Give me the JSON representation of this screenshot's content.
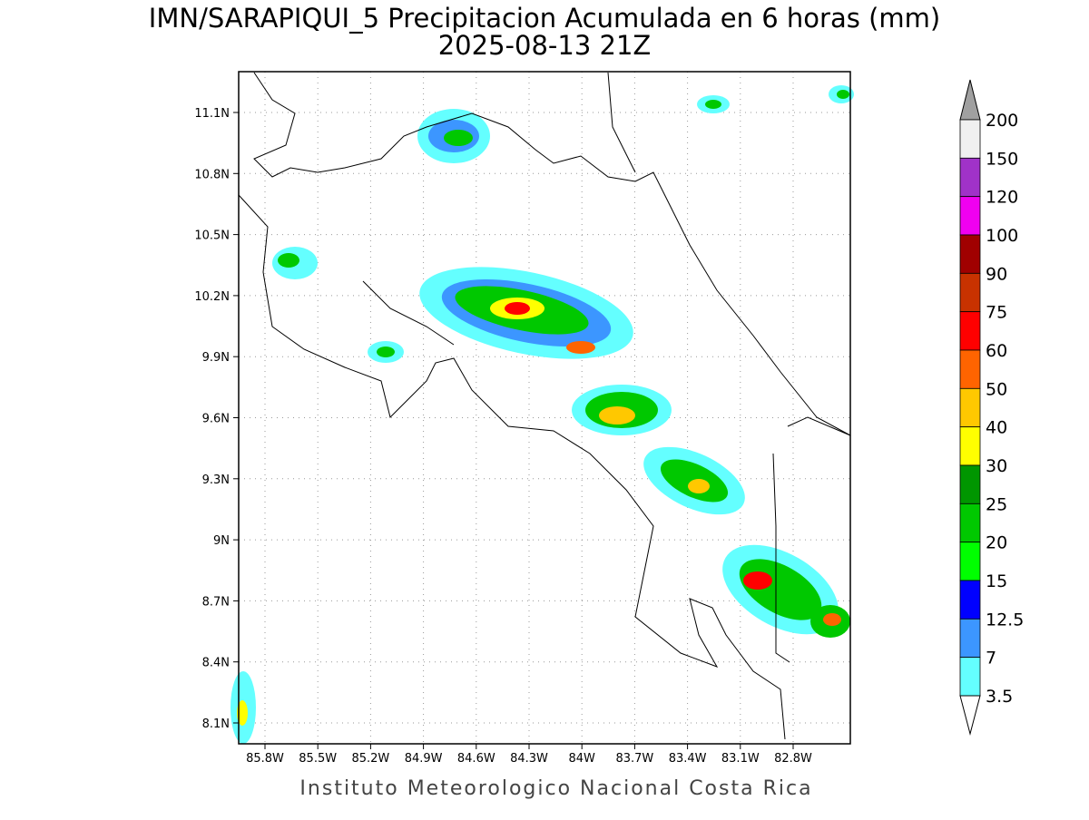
{
  "title": "IMN/SARAPIQUI_5 Precipitacion Acumulada en 6 horas (mm)",
  "subtitle": "2025-08-13 21Z",
  "footer": "Instituto Meteorologico Nacional Costa Rica",
  "x_ticks": [
    "85.8W",
    "85.5W",
    "85.2W",
    "84.9W",
    "84.6W",
    "84.3W",
    "84W",
    "83.7W",
    "83.4W",
    "83.1W",
    "82.8W"
  ],
  "y_ticks": [
    "11.1N",
    "10.8N",
    "10.5N",
    "10.2N",
    "9.9N",
    "9.6N",
    "9.3N",
    "9N",
    "8.7N",
    "8.4N",
    "8.1N"
  ],
  "colorbar": {
    "labels": [
      200,
      150,
      120,
      100,
      90,
      75,
      60,
      50,
      40,
      30,
      25,
      20,
      15,
      12.5,
      7,
      3.5
    ],
    "colors": [
      "#f0f0f0",
      "#a032c8",
      "#f000f0",
      "#a00000",
      "#c83200",
      "#ff0000",
      "#ff6400",
      "#ffc800",
      "#ffff00",
      "#009600",
      "#00c800",
      "#00ff00",
      "#0000ff",
      "#3c96ff",
      "#64ffff"
    ],
    "above_color": "#a0a0a0",
    "below_color": "#ffffff"
  }
}
